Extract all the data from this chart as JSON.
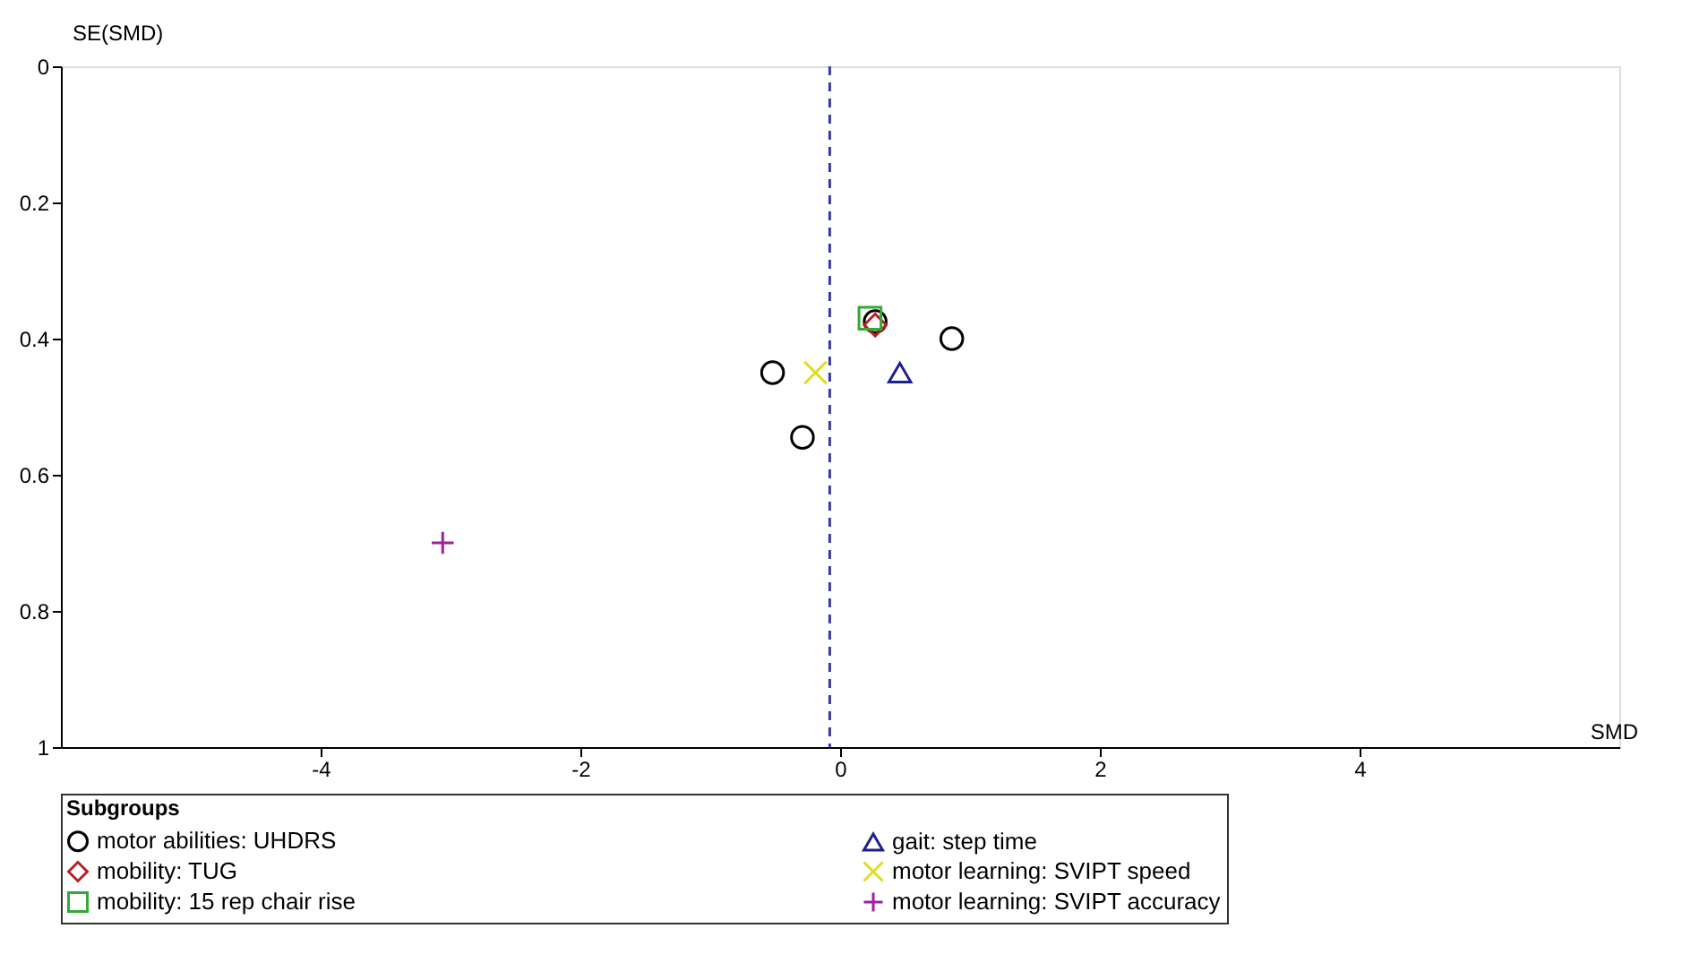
{
  "chart_data": {
    "type": "scatter",
    "xlabel": "SMD",
    "ylabel": "SE(SMD)",
    "legend_title": "Subgroups",
    "legend": "bottom",
    "grid": false,
    "xlim": [
      -6,
      6
    ],
    "xticks": [
      -4,
      -2,
      0,
      2,
      4
    ],
    "ylim": [
      1,
      0
    ],
    "yticks": [
      0,
      0.2,
      0.4,
      0.6,
      0.8,
      1
    ],
    "ref_lines": [
      {
        "axis": "x",
        "value": -0.08,
        "label": null,
        "color": "#3b3ba0",
        "line_style": "dashed"
      }
    ],
    "series": [
      {
        "name": "motor abilities: UHDRS",
        "color": "#000000",
        "marker": "circle",
        "x": [
          -0.52,
          0.86,
          -0.29,
          0.27
        ],
        "values": [
          0.45,
          0.4,
          0.545,
          0.375
        ]
      },
      {
        "name": "mobility: TUG",
        "color": "#b22222",
        "marker": "diamond",
        "x": [
          0.27
        ],
        "values": [
          0.38
        ]
      },
      {
        "name": "mobility: 15 rep chair rise",
        "color": "#33aa33",
        "marker": "square",
        "x": [
          0.23
        ],
        "values": [
          0.37
        ]
      },
      {
        "name": "gait: step time",
        "color": "#1f1f8f",
        "marker": "triangle",
        "x": [
          0.46
        ],
        "values": [
          0.45
        ]
      },
      {
        "name": "motor learning: SVIPT speed",
        "color": "#dddd22",
        "marker": "cross",
        "x": [
          -0.19
        ],
        "values": [
          0.45
        ]
      },
      {
        "name": "motor learning: SVIPT accuracy",
        "color": "#a020a0",
        "marker": "plus",
        "x": [
          -3.06
        ],
        "values": [
          0.7
        ]
      }
    ]
  }
}
